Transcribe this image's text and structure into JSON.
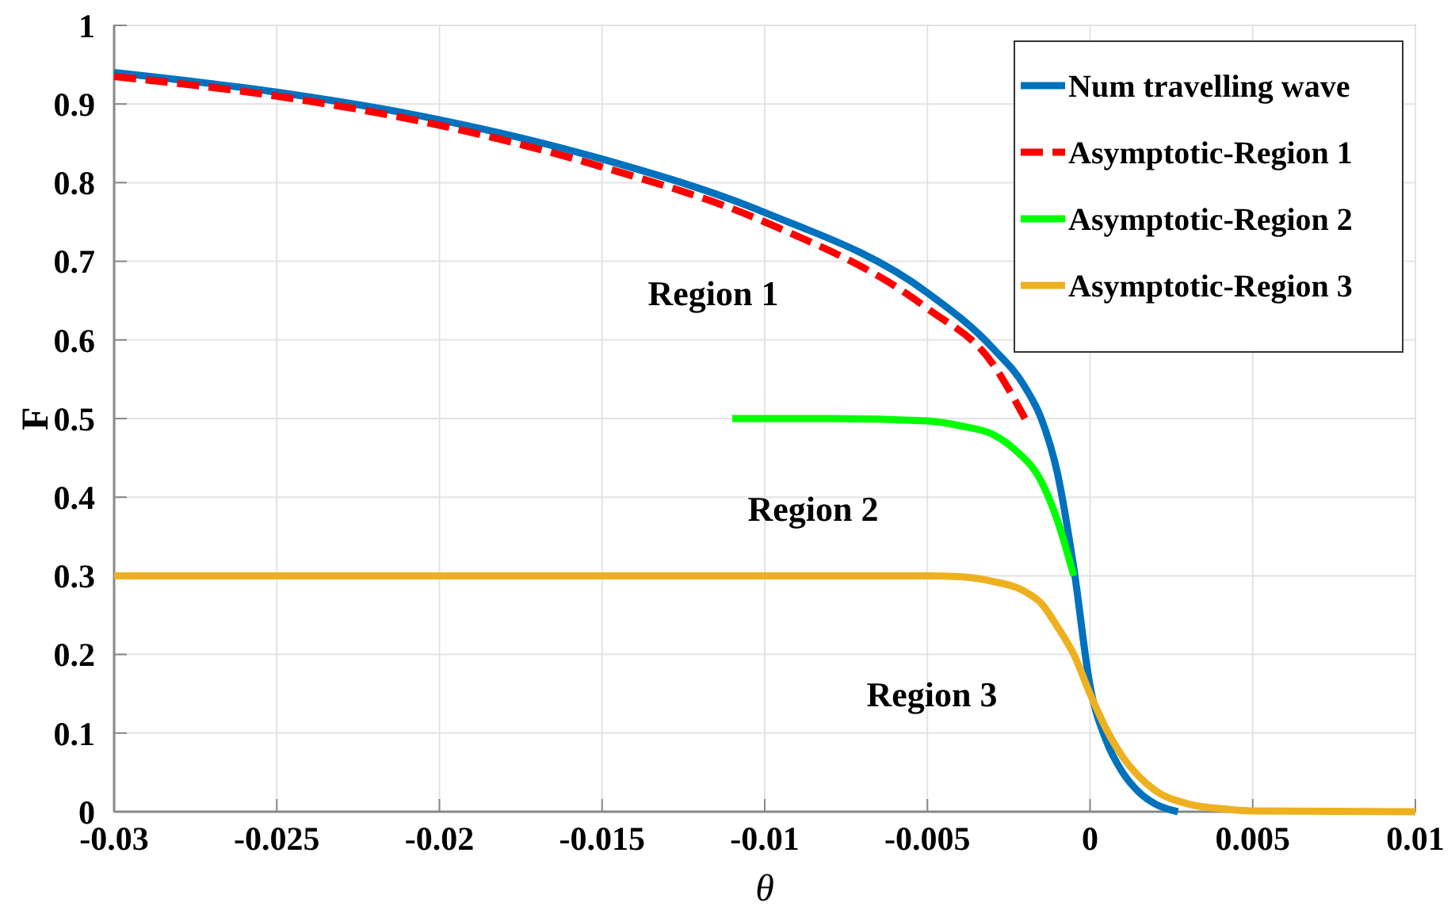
{
  "chart_data": {
    "type": "line",
    "xlabel": "θ",
    "ylabel": "F",
    "xlim": [
      -0.03,
      0.01
    ],
    "ylim": [
      0,
      1
    ],
    "xticks": [
      -0.03,
      -0.025,
      -0.02,
      -0.015,
      -0.01,
      -0.005,
      0,
      0.005,
      0.01
    ],
    "yticks": [
      0,
      0.1,
      0.2,
      0.3,
      0.4,
      0.5,
      0.6,
      0.7,
      0.8,
      0.9,
      1
    ],
    "grid": true,
    "legend": "top right",
    "annotations": [
      "Region 1",
      "Region 2",
      "Region 3"
    ],
    "series": [
      {
        "name": "Num travelling wave",
        "color": "#0072bd",
        "line_style": "solid",
        "x": [
          -0.03,
          -0.025,
          -0.02,
          -0.015,
          -0.01,
          -0.005,
          -0.003,
          -0.002,
          -0.0015,
          -0.001,
          -0.0005,
          0,
          0.0005,
          0.001,
          0.0015,
          0.002,
          0.0027
        ],
        "values": [
          0.94,
          0.915,
          0.88,
          0.83,
          0.762,
          0.66,
          0.59,
          0.54,
          0.5,
          0.43,
          0.31,
          0.16,
          0.09,
          0.05,
          0.025,
          0.01,
          0
        ]
      },
      {
        "name": "Asymptotic-Region 1",
        "color": "#ff0000",
        "line_style": "dashed",
        "x": [
          -0.03,
          -0.025,
          -0.02,
          -0.015,
          -0.01,
          -0.005,
          -0.003,
          -0.002
        ],
        "values": [
          0.935,
          0.91,
          0.873,
          0.82,
          0.75,
          0.64,
          0.57,
          0.5
        ]
      },
      {
        "name": "Asymptotic-Region 2",
        "color": "#00ff00",
        "line_style": "solid",
        "x": [
          -0.011,
          -0.008,
          -0.005,
          -0.0039,
          -0.003,
          -0.0023,
          -0.0015,
          -0.001,
          -0.0005
        ],
        "values": [
          0.5,
          0.5,
          0.497,
          0.49,
          0.48,
          0.46,
          0.42,
          0.37,
          0.3
        ]
      },
      {
        "name": "Asymptotic-Region 3",
        "color": "#edb120",
        "line_style": "solid",
        "x": [
          -0.03,
          -0.01,
          -0.005,
          -0.004,
          -0.003,
          -0.002,
          -0.0015,
          -0.001,
          -0.0005,
          0,
          0.0005,
          0.001,
          0.0015,
          0.002,
          0.003,
          0.004,
          0.005,
          0.01
        ],
        "values": [
          0.3,
          0.3,
          0.3,
          0.299,
          0.293,
          0.28,
          0.265,
          0.235,
          0.2,
          0.15,
          0.105,
          0.07,
          0.045,
          0.027,
          0.01,
          0.004,
          0.001,
          0
        ]
      }
    ]
  }
}
